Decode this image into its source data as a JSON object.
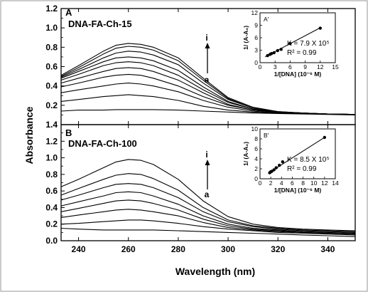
{
  "figure": {
    "ylabel": "Absorbance",
    "xlabel": "Wavelength (nm)",
    "arrow_top_label": "i",
    "arrow_bottom_label": "a"
  },
  "chart_data": [
    {
      "type": "line",
      "panel_label": "A",
      "sample_label": "DNA-FA-Ch-15",
      "xlim": [
        233,
        351
      ],
      "ylim": [
        0.0,
        1.2
      ],
      "x_ticks": [
        "240",
        "260",
        "280",
        "300",
        "320",
        "340"
      ],
      "y_ticks": [
        "0.2",
        "0.4",
        "0.6",
        "0.8",
        "1.0",
        "1.2"
      ],
      "x": [
        233,
        240,
        250,
        255,
        260,
        265,
        270,
        280,
        290,
        300,
        310,
        320,
        330,
        340,
        351
      ],
      "series": [
        {
          "values": [
            0.14,
            0.15,
            0.15,
            0.155,
            0.155,
            0.155,
            0.155,
            0.15,
            0.14,
            0.13,
            0.12,
            0.115,
            0.11,
            0.105,
            0.1
          ]
        },
        {
          "values": [
            0.24,
            0.26,
            0.29,
            0.3,
            0.31,
            0.3,
            0.29,
            0.25,
            0.19,
            0.15,
            0.13,
            0.12,
            0.115,
            0.11,
            0.105
          ]
        },
        {
          "values": [
            0.33,
            0.36,
            0.4,
            0.42,
            0.43,
            0.42,
            0.4,
            0.34,
            0.25,
            0.18,
            0.14,
            0.12,
            0.115,
            0.11,
            0.105
          ]
        },
        {
          "values": [
            0.39,
            0.43,
            0.49,
            0.51,
            0.52,
            0.51,
            0.48,
            0.4,
            0.29,
            0.2,
            0.15,
            0.125,
            0.115,
            0.11,
            0.105
          ]
        },
        {
          "values": [
            0.43,
            0.48,
            0.55,
            0.58,
            0.59,
            0.58,
            0.55,
            0.46,
            0.33,
            0.21,
            0.15,
            0.125,
            0.115,
            0.11,
            0.105
          ]
        },
        {
          "values": [
            0.46,
            0.52,
            0.61,
            0.64,
            0.65,
            0.64,
            0.61,
            0.51,
            0.36,
            0.23,
            0.16,
            0.13,
            0.12,
            0.11,
            0.105
          ]
        },
        {
          "values": [
            0.48,
            0.55,
            0.65,
            0.69,
            0.7,
            0.69,
            0.66,
            0.56,
            0.39,
            0.24,
            0.16,
            0.13,
            0.12,
            0.11,
            0.105
          ]
        },
        {
          "values": [
            0.49,
            0.57,
            0.69,
            0.74,
            0.76,
            0.75,
            0.72,
            0.62,
            0.43,
            0.26,
            0.17,
            0.13,
            0.12,
            0.11,
            0.105
          ]
        },
        {
          "values": [
            0.5,
            0.59,
            0.73,
            0.79,
            0.81,
            0.8,
            0.77,
            0.66,
            0.46,
            0.27,
            0.17,
            0.135,
            0.12,
            0.11,
            0.105
          ]
        },
        {
          "values": [
            0.51,
            0.61,
            0.76,
            0.82,
            0.84,
            0.83,
            0.8,
            0.69,
            0.48,
            0.28,
            0.18,
            0.135,
            0.12,
            0.11,
            0.105
          ]
        }
      ],
      "inset": {
        "type": "scatter",
        "label": "A'",
        "xlabel": "1/[DNA] (10⁻⁶ M)",
        "ylabel": "1/ (A-A₀)",
        "xlim": [
          0,
          15
        ],
        "ylim": [
          0,
          12
        ],
        "x_ticks": [
          "0",
          "3",
          "6",
          "9",
          "12",
          "15"
        ],
        "y_ticks": [
          "0",
          "3",
          "6",
          "9",
          "12"
        ],
        "points": [
          [
            1.5,
            1.7
          ],
          [
            2.0,
            2.0
          ],
          [
            2.3,
            2.2
          ],
          [
            2.8,
            2.4
          ],
          [
            3.5,
            2.9
          ],
          [
            4.2,
            3.2
          ],
          [
            6.0,
            4.6
          ],
          [
            12.0,
            8.3
          ]
        ],
        "fit_line": [
          [
            1.0,
            1.4
          ],
          [
            12.0,
            8.4
          ]
        ],
        "annotation_k": "K = 7.9 X 10⁵",
        "annotation_r2": "R² = 0.99"
      }
    },
    {
      "type": "line",
      "panel_label": "B",
      "sample_label": "DNA-FA-Ch-100",
      "xlim": [
        233,
        351
      ],
      "ylim": [
        0.0,
        1.4
      ],
      "x_ticks": [
        "240",
        "260",
        "280",
        "300",
        "320",
        "340"
      ],
      "y_ticks": [
        "0.0",
        "0.2",
        "0.4",
        "0.6",
        "0.8",
        "1.0",
        "1.2",
        "1.4"
      ],
      "x": [
        233,
        240,
        250,
        255,
        260,
        265,
        270,
        280,
        290,
        300,
        310,
        320,
        330,
        340,
        351
      ],
      "series": [
        {
          "values": [
            0.15,
            0.14,
            0.13,
            0.13,
            0.13,
            0.13,
            0.13,
            0.12,
            0.11,
            0.1,
            0.09,
            0.08,
            0.07,
            0.06,
            0.05
          ]
        },
        {
          "values": [
            0.2,
            0.21,
            0.23,
            0.24,
            0.25,
            0.25,
            0.24,
            0.21,
            0.17,
            0.14,
            0.12,
            0.1,
            0.09,
            0.08,
            0.07
          ]
        },
        {
          "values": [
            0.28,
            0.31,
            0.35,
            0.37,
            0.38,
            0.37,
            0.35,
            0.3,
            0.22,
            0.16,
            0.13,
            0.11,
            0.1,
            0.09,
            0.08
          ]
        },
        {
          "values": [
            0.35,
            0.39,
            0.45,
            0.48,
            0.49,
            0.48,
            0.45,
            0.37,
            0.26,
            0.18,
            0.14,
            0.12,
            0.1,
            0.09,
            0.08
          ]
        },
        {
          "values": [
            0.42,
            0.47,
            0.54,
            0.58,
            0.59,
            0.58,
            0.54,
            0.44,
            0.3,
            0.2,
            0.15,
            0.13,
            0.11,
            0.1,
            0.09
          ]
        },
        {
          "values": [
            0.49,
            0.55,
            0.64,
            0.68,
            0.69,
            0.68,
            0.64,
            0.52,
            0.35,
            0.23,
            0.17,
            0.14,
            0.12,
            0.11,
            0.1
          ]
        },
        {
          "values": [
            0.55,
            0.63,
            0.74,
            0.79,
            0.81,
            0.8,
            0.75,
            0.61,
            0.4,
            0.25,
            0.18,
            0.15,
            0.13,
            0.12,
            0.11
          ]
        },
        {
          "values": [
            0.65,
            0.74,
            0.88,
            0.95,
            0.98,
            0.97,
            0.92,
            0.74,
            0.48,
            0.29,
            0.2,
            0.16,
            0.14,
            0.13,
            0.12
          ]
        }
      ],
      "inset": {
        "type": "scatter",
        "label": "B'",
        "xlabel": "1/[DNA] (10⁻⁶ M)",
        "ylabel": "1/ (A-A₀)",
        "xlim": [
          0,
          14
        ],
        "ylim": [
          0,
          10
        ],
        "x_ticks": [
          "0",
          "2",
          "4",
          "6",
          "8",
          "10",
          "12",
          "14"
        ],
        "y_ticks": [
          "0",
          "2",
          "4",
          "6",
          "8",
          "10"
        ],
        "points": [
          [
            1.8,
            1.2
          ],
          [
            2.0,
            1.4
          ],
          [
            2.2,
            1.5
          ],
          [
            2.6,
            1.8
          ],
          [
            3.0,
            2.2
          ],
          [
            3.6,
            2.7
          ],
          [
            4.2,
            3.4
          ],
          [
            12.0,
            8.3
          ]
        ],
        "fit_line": [
          [
            1.5,
            1.1
          ],
          [
            12.0,
            8.3
          ]
        ],
        "annotation_k": "K = 8.5 X 10⁵",
        "annotation_r2": "R² = 0.99"
      }
    }
  ]
}
